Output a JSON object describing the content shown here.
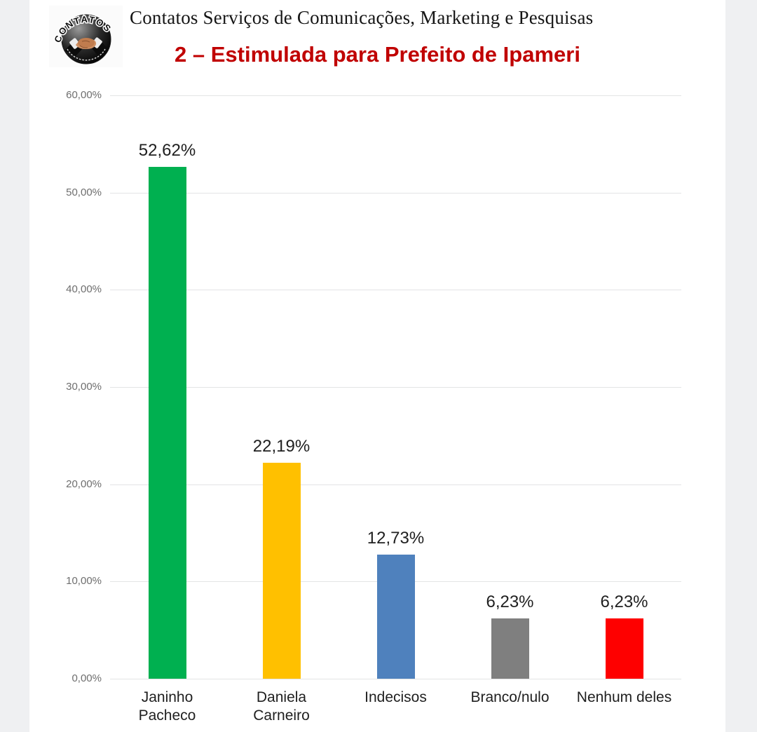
{
  "header": {
    "company": "Contatos Serviços de Comunicações, Marketing e Pesquisas",
    "logo_arc_text": "CONTATOS"
  },
  "chart_data": {
    "type": "bar",
    "title": "2 – Estimulada para Prefeito de Ipameri",
    "title_color": "#c00000",
    "categories": [
      "Janinho\nPacheco",
      "Daniela\nCarneiro",
      "Indecisos",
      "Branco/nulo",
      "Nenhum deles"
    ],
    "values": [
      52.62,
      22.19,
      12.73,
      6.23,
      6.23
    ],
    "value_labels": [
      "52,62%",
      "22,19%",
      "12,73%",
      "6,23%",
      "6,23%"
    ],
    "bar_colors": [
      "#00b050",
      "#ffc000",
      "#4f81bd",
      "#7f7f7f",
      "#fe0000"
    ],
    "y_ticks": [
      "60,00%",
      "50,00%",
      "40,00%",
      "30,00%",
      "20,00%",
      "10,00%",
      "0,00%"
    ],
    "ylim": [
      0,
      60
    ],
    "grid": true,
    "legend": "none",
    "xlabel": "",
    "ylabel": ""
  }
}
